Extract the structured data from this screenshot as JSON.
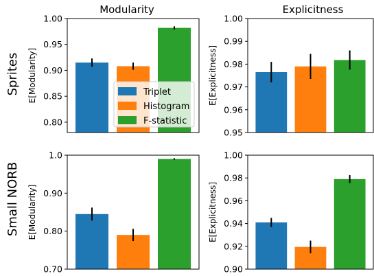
{
  "colors": {
    "triplet": "#1f77b4",
    "histogram": "#ff7f0e",
    "fstatistic": "#2ca02c",
    "errorbar": "#000000"
  },
  "column_titles": [
    "Modularity",
    "Explicitness"
  ],
  "row_labels": [
    "Sprites",
    "Small NORB"
  ],
  "legend": {
    "placement": "bottom-right of top-left panel",
    "entries": [
      {
        "label": "Triplet",
        "color": "#1f77b4"
      },
      {
        "label": "Histogram",
        "color": "#ff7f0e"
      },
      {
        "label": "F-statistic",
        "color": "#2ca02c"
      }
    ]
  },
  "chart_data": [
    {
      "type": "bar",
      "row": "Sprites",
      "title": "Modularity",
      "ylabel": "E[Modularity]",
      "categories": [
        "Triplet",
        "Histogram",
        "F-statistic"
      ],
      "values": [
        0.915,
        0.908,
        0.982
      ],
      "errors": [
        0.008,
        0.007,
        0.003
      ],
      "ylim": [
        0.78,
        1.0
      ],
      "yticks": [
        0.8,
        0.85,
        0.9,
        0.95,
        1.0
      ],
      "ytick_labels": [
        "0.80",
        "0.85",
        "0.90",
        "0.95",
        "1.00"
      ],
      "grid": false
    },
    {
      "type": "bar",
      "row": "Sprites",
      "title": "Explicitness",
      "ylabel": "E[Explicitness]",
      "categories": [
        "Triplet",
        "Histogram",
        "F-statistic"
      ],
      "values": [
        0.9765,
        0.979,
        0.9818
      ],
      "errors": [
        0.0045,
        0.0055,
        0.0042
      ],
      "ylim": [
        0.95,
        1.0
      ],
      "yticks": [
        0.95,
        0.96,
        0.97,
        0.98,
        0.99,
        1.0
      ],
      "ytick_labels": [
        "0.95",
        "0.96",
        "0.97",
        "0.98",
        "0.99",
        "1.00"
      ],
      "grid": false
    },
    {
      "type": "bar",
      "row": "Small NORB",
      "title": "",
      "ylabel": "E[Modularity]",
      "categories": [
        "Triplet",
        "Histogram",
        "F-statistic"
      ],
      "values": [
        0.845,
        0.79,
        0.99
      ],
      "errors": [
        0.017,
        0.016,
        0.002
      ],
      "ylim": [
        0.7,
        1.0
      ],
      "yticks": [
        0.7,
        0.8,
        0.9,
        1.0
      ],
      "ytick_labels": [
        "0.70",
        "0.80",
        "0.90",
        "1.0"
      ],
      "grid": false
    },
    {
      "type": "bar",
      "row": "Small NORB",
      "title": "",
      "ylabel": "E[Explicitness]",
      "categories": [
        "Triplet",
        "Histogram",
        "F-statistic"
      ],
      "values": [
        0.941,
        0.9195,
        0.979
      ],
      "errors": [
        0.004,
        0.0055,
        0.0035
      ],
      "ylim": [
        0.9,
        1.0
      ],
      "yticks": [
        0.9,
        0.92,
        0.94,
        0.96,
        0.98,
        1.0
      ],
      "ytick_labels": [
        "0.90",
        "0.92",
        "0.94",
        "0.96",
        "0.98",
        "1.00"
      ],
      "grid": false
    }
  ]
}
